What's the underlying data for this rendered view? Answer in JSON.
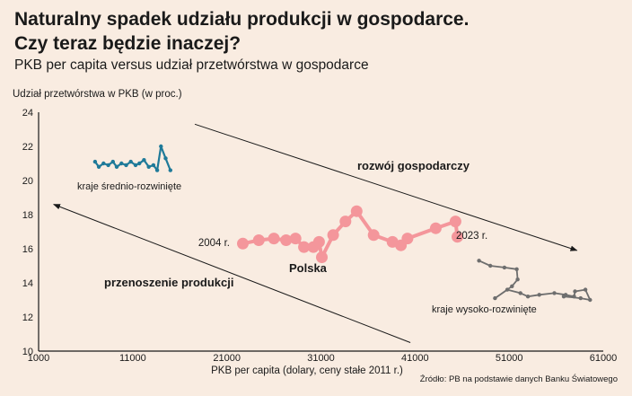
{
  "header": {
    "title_line1": "Naturalny spadek udziału produkcji w gospodarce.",
    "title_line2": "Czy teraz będzie inaczej?",
    "subtitle": "PKB per capita versus udział przetwórstwa w gospodarce"
  },
  "source": "Źródło: PB na podstawie danych Banku Światowego",
  "chart_data": {
    "type": "line",
    "xlabel": "PKB per capita (dolary, ceny stałe 2011 r.)",
    "ylabel": "Udział przetwórstwa w PKB (w proc.)",
    "xlim": [
      1000,
      61000
    ],
    "ylim": [
      10,
      24
    ],
    "x_ticks": [
      1000,
      11000,
      21000,
      31000,
      41000,
      51000,
      61000
    ],
    "y_ticks": [
      10,
      12,
      14,
      16,
      18,
      20,
      22,
      24
    ],
    "grid": false,
    "series": [
      {
        "name": "Polska",
        "color": "#f4969b",
        "points": [
          [
            22700,
            16.3
          ],
          [
            24400,
            16.5
          ],
          [
            26000,
            16.6
          ],
          [
            27300,
            16.5
          ],
          [
            28300,
            16.6
          ],
          [
            29200,
            16.1
          ],
          [
            30200,
            16.1
          ],
          [
            30800,
            16.4
          ],
          [
            31100,
            15.5
          ],
          [
            32300,
            16.8
          ],
          [
            33600,
            17.6
          ],
          [
            34800,
            18.2
          ],
          [
            36600,
            16.8
          ],
          [
            38600,
            16.4
          ],
          [
            39500,
            16.2
          ],
          [
            40200,
            16.6
          ],
          [
            43200,
            17.2
          ],
          [
            45300,
            17.6
          ],
          [
            45500,
            16.7
          ]
        ]
      },
      {
        "name": "kraje średnio-rozwinięte",
        "color": "#1f7a99",
        "points": [
          [
            7000,
            21.1
          ],
          [
            7400,
            20.8
          ],
          [
            7900,
            21.0
          ],
          [
            8400,
            20.9
          ],
          [
            8900,
            21.1
          ],
          [
            9300,
            20.8
          ],
          [
            9800,
            21.0
          ],
          [
            10300,
            20.9
          ],
          [
            10800,
            21.1
          ],
          [
            11300,
            20.9
          ],
          [
            11700,
            21.0
          ],
          [
            12200,
            21.2
          ],
          [
            12700,
            20.8
          ],
          [
            13200,
            20.9
          ],
          [
            13600,
            20.6
          ],
          [
            14000,
            22.0
          ],
          [
            14500,
            21.3
          ],
          [
            15000,
            20.6
          ]
        ]
      },
      {
        "name": "kraje wysoko-rozwinięte",
        "color": "#6e6e6e",
        "points": [
          [
            47800,
            15.3
          ],
          [
            49000,
            15.0
          ],
          [
            50500,
            14.9
          ],
          [
            51800,
            14.8
          ],
          [
            51900,
            14.2
          ],
          [
            51300,
            13.8
          ],
          [
            49500,
            13.1
          ],
          [
            50800,
            13.6
          ],
          [
            52200,
            13.4
          ],
          [
            53000,
            13.2
          ],
          [
            54200,
            13.3
          ],
          [
            55800,
            13.4
          ],
          [
            57000,
            13.3
          ],
          [
            57900,
            13.2
          ],
          [
            58000,
            13.5
          ],
          [
            59100,
            13.6
          ],
          [
            59600,
            13.0
          ],
          [
            58600,
            13.1
          ],
          [
            56800,
            13.2
          ]
        ]
      }
    ],
    "annotations": {
      "start_year": "2004 r.",
      "end_year": "2023 r.",
      "arrow_down_label": "rozwój gospodarczy",
      "arrow_up_label": "przenoszenie produkcji"
    }
  }
}
